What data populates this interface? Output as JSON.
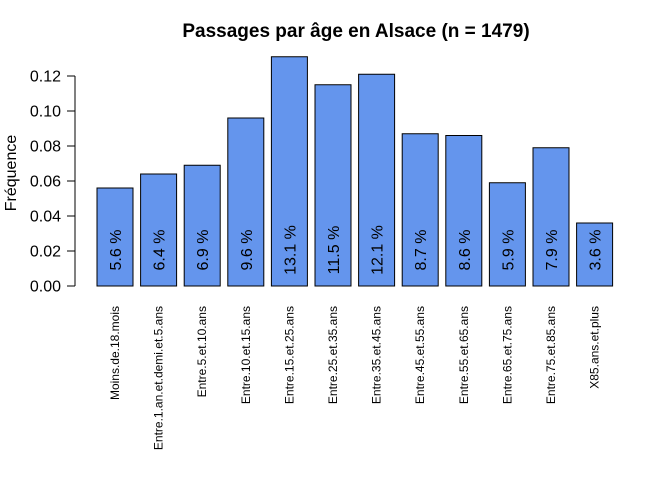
{
  "chart_data": {
    "type": "bar",
    "title": "Passages par âge en Alsace (n = 1479)",
    "xlabel": "",
    "ylabel": "Fréquence",
    "ylim": [
      0,
      0.12
    ],
    "yticks": [
      "0.00",
      "0.02",
      "0.04",
      "0.06",
      "0.08",
      "0.10",
      "0.12"
    ],
    "bar_color": "#6495ED",
    "categories": [
      "Moins.de.18.mois",
      "Entre.1.an.et.demi.et.5.ans",
      "Entre.5.et.10.ans",
      "Entre.10.et.15.ans",
      "Entre.15.et.25.ans",
      "Entre.25.et.35.ans",
      "Entre.35.et.45.ans",
      "Entre.45.et.55.ans",
      "Entre.55.et.65.ans",
      "Entre.65.et.75.ans",
      "Entre.75.et.85.ans",
      "X85.ans.et.plus"
    ],
    "values": [
      0.056,
      0.064,
      0.069,
      0.096,
      0.131,
      0.115,
      0.121,
      0.087,
      0.086,
      0.059,
      0.079,
      0.036
    ],
    "data_labels": [
      "5.6 %",
      "6.4 %",
      "6.9 %",
      "9.6 %",
      "13.1 %",
      "11.5 %",
      "12.1 %",
      "8.7 %",
      "8.6 %",
      "5.9 %",
      "7.9 %",
      "3.6 %"
    ],
    "grid": false,
    "legend": "none"
  }
}
